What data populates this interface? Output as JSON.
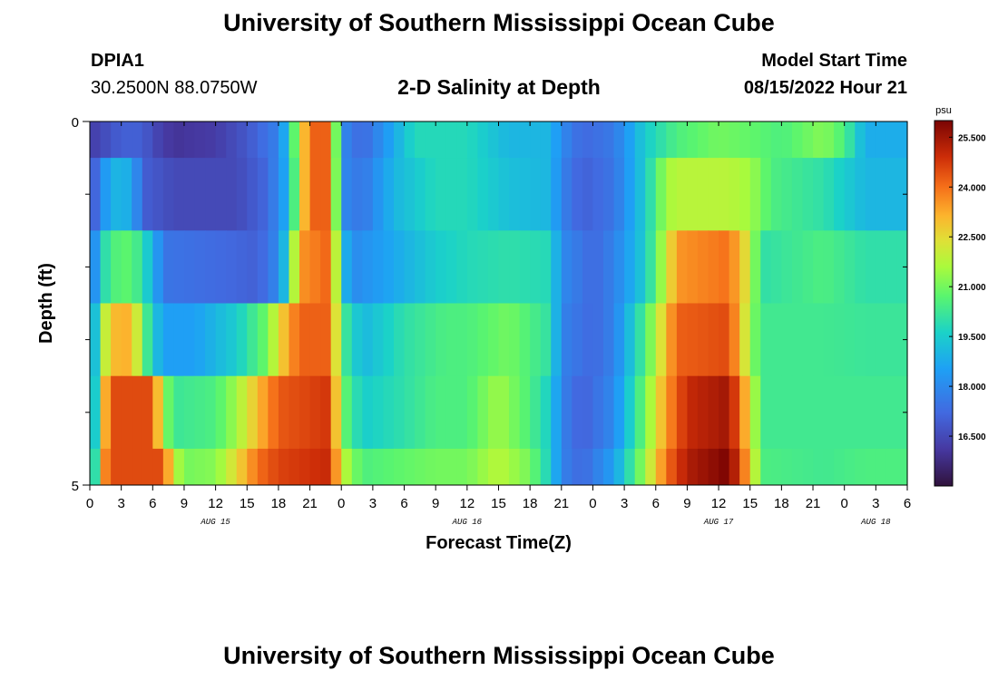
{
  "page": {
    "title_top": "University of Southern Mississippi Ocean Cube",
    "title_bottom": "University of Southern Mississippi Ocean Cube",
    "station_id": "DPIA1",
    "coordinates": "30.2500N  88.0750W",
    "chart_title": "2-D Salinity at Depth",
    "model_start_label": "Model Start Time",
    "model_start_value": "08/15/2022 Hour 21"
  },
  "chart_data": {
    "type": "heatmap",
    "title": "2-D Salinity at Depth",
    "xlabel": "Forecast Time(Z)",
    "ylabel": "Depth (ft)",
    "x_tick_labels": [
      "0",
      "3",
      "6",
      "9",
      "12",
      "15",
      "18",
      "21",
      "0",
      "3",
      "6",
      "9",
      "12",
      "15",
      "18",
      "21",
      "0",
      "3",
      "6",
      "9",
      "12",
      "15",
      "18",
      "21",
      "0",
      "3",
      "6"
    ],
    "x_range_hours": [
      0,
      78
    ],
    "day_labels": [
      {
        "label": "AUG 15",
        "hour": 12
      },
      {
        "label": "AUG 16",
        "hour": 36
      },
      {
        "label": "AUG 17",
        "hour": 60
      },
      {
        "label": "AUG 18",
        "hour": 75
      }
    ],
    "y_tick_labels": [
      "0",
      "5"
    ],
    "y_range": [
      0,
      5
    ],
    "colorbar": {
      "unit": "psu",
      "range": [
        15.0,
        26.0
      ],
      "tick_labels": [
        "25.500",
        "24.000",
        "22.500",
        "21.000",
        "19.500",
        "18.000",
        "16.500"
      ],
      "tick_values": [
        25.5,
        24.0,
        22.5,
        21.0,
        19.5,
        18.0,
        16.5
      ]
    },
    "depth_layers": [
      0.25,
      1.25,
      2.25,
      3.25,
      4.25,
      4.75
    ],
    "series": [
      {
        "name": "layer-0",
        "knots": [
          [
            0,
            16.2
          ],
          [
            3,
            17.0
          ],
          [
            5,
            17.0
          ],
          [
            6,
            16.5
          ],
          [
            8,
            16.0
          ],
          [
            12,
            16.2
          ],
          [
            15,
            16.8
          ],
          [
            18,
            17.8
          ],
          [
            19,
            19.5
          ],
          [
            20,
            22.0
          ],
          [
            21,
            24.2
          ],
          [
            23,
            24.2
          ],
          [
            23.5,
            21.0
          ],
          [
            24,
            18.0
          ],
          [
            26,
            17.2
          ],
          [
            28,
            18.2
          ],
          [
            31,
            19.8
          ],
          [
            36,
            19.8
          ],
          [
            40,
            19.0
          ],
          [
            44,
            19.0
          ],
          [
            45,
            18.0
          ],
          [
            47,
            17.2
          ],
          [
            50,
            17.6
          ],
          [
            53,
            19.5
          ],
          [
            56,
            20.5
          ],
          [
            60,
            21.0
          ],
          [
            63,
            20.8
          ],
          [
            66,
            20.5
          ],
          [
            70,
            21.2
          ],
          [
            72,
            20.5
          ],
          [
            74,
            18.8
          ],
          [
            78,
            18.8
          ]
        ]
      },
      {
        "name": "layer-1",
        "knots": [
          [
            0,
            16.5
          ],
          [
            1,
            17.8
          ],
          [
            2,
            19.0
          ],
          [
            4,
            18.8
          ],
          [
            5,
            17.0
          ],
          [
            8,
            16.5
          ],
          [
            14,
            16.5
          ],
          [
            17,
            17.2
          ],
          [
            19,
            19.0
          ],
          [
            20,
            22.0
          ],
          [
            21,
            24.2
          ],
          [
            23,
            24.2
          ],
          [
            24,
            18.0
          ],
          [
            26,
            17.5
          ],
          [
            29,
            19.0
          ],
          [
            33,
            19.8
          ],
          [
            36,
            19.8
          ],
          [
            40,
            19.2
          ],
          [
            44,
            19.0
          ],
          [
            45,
            17.8
          ],
          [
            47,
            17.0
          ],
          [
            50,
            17.5
          ],
          [
            53,
            19.5
          ],
          [
            55,
            21.5
          ],
          [
            56,
            21.8
          ],
          [
            61,
            21.8
          ],
          [
            63,
            21.5
          ],
          [
            65,
            20.5
          ],
          [
            70,
            20.0
          ],
          [
            72,
            19.5
          ],
          [
            74,
            19.0
          ],
          [
            78,
            19.0
          ]
        ]
      },
      {
        "name": "layer-2",
        "knots": [
          [
            0,
            17.0
          ],
          [
            1,
            19.5
          ],
          [
            2,
            20.5
          ],
          [
            4,
            20.8
          ],
          [
            6,
            19.0
          ],
          [
            7,
            17.5
          ],
          [
            13,
            17.2
          ],
          [
            16,
            17.0
          ],
          [
            18,
            18.0
          ],
          [
            19,
            20.0
          ],
          [
            20,
            23.5
          ],
          [
            23,
            24.2
          ],
          [
            24,
            19.5
          ],
          [
            25,
            18.0
          ],
          [
            28,
            18.5
          ],
          [
            33,
            19.5
          ],
          [
            36,
            19.8
          ],
          [
            40,
            20.0
          ],
          [
            44,
            19.8
          ],
          [
            45,
            18.0
          ],
          [
            48,
            17.2
          ],
          [
            50,
            17.8
          ],
          [
            53,
            19.5
          ],
          [
            55,
            22.0
          ],
          [
            56,
            23.5
          ],
          [
            61,
            24.0
          ],
          [
            63,
            22.0
          ],
          [
            64,
            20.0
          ],
          [
            70,
            20.5
          ],
          [
            74,
            20.0
          ],
          [
            78,
            20.0
          ]
        ]
      },
      {
        "name": "layer-3",
        "knots": [
          [
            0,
            17.5
          ],
          [
            1,
            21.0
          ],
          [
            2,
            23.0
          ],
          [
            4,
            23.2
          ],
          [
            5,
            21.0
          ],
          [
            6,
            19.5
          ],
          [
            7,
            18.5
          ],
          [
            10,
            18.5
          ],
          [
            14,
            19.5
          ],
          [
            17,
            21.0
          ],
          [
            18,
            22.5
          ],
          [
            20,
            24.2
          ],
          [
            23,
            24.2
          ],
          [
            24,
            20.5
          ],
          [
            26,
            19.0
          ],
          [
            30,
            20.0
          ],
          [
            34,
            20.5
          ],
          [
            36,
            20.5
          ],
          [
            40,
            21.0
          ],
          [
            44,
            20.0
          ],
          [
            45,
            17.8
          ],
          [
            48,
            17.2
          ],
          [
            50,
            17.8
          ],
          [
            53,
            20.5
          ],
          [
            56,
            24.2
          ],
          [
            61,
            24.5
          ],
          [
            63,
            21.5
          ],
          [
            64,
            20.3
          ],
          [
            70,
            20.3
          ],
          [
            74,
            20.2
          ],
          [
            78,
            20.2
          ]
        ]
      },
      {
        "name": "layer-4",
        "knots": [
          [
            0,
            17.0
          ],
          [
            1,
            22.0
          ],
          [
            2,
            24.5
          ],
          [
            6,
            24.5
          ],
          [
            7,
            21.5
          ],
          [
            8,
            20.2
          ],
          [
            12,
            20.5
          ],
          [
            14,
            21.5
          ],
          [
            16,
            23.0
          ],
          [
            18,
            24.3
          ],
          [
            23,
            24.8
          ],
          [
            24,
            21.0
          ],
          [
            26,
            19.5
          ],
          [
            30,
            20.0
          ],
          [
            33,
            20.5
          ],
          [
            36,
            20.5
          ],
          [
            39,
            21.5
          ],
          [
            42,
            20.5
          ],
          [
            44,
            19.5
          ],
          [
            45,
            17.8
          ],
          [
            47,
            17.0
          ],
          [
            50,
            18.0
          ],
          [
            53,
            21.0
          ],
          [
            55,
            23.5
          ],
          [
            57,
            25.0
          ],
          [
            61,
            25.5
          ],
          [
            63,
            22.5
          ],
          [
            64,
            20.3
          ],
          [
            70,
            20.3
          ],
          [
            74,
            20.3
          ],
          [
            78,
            20.3
          ]
        ]
      },
      {
        "name": "layer-5",
        "knots": [
          [
            0,
            17.0
          ],
          [
            1,
            23.0
          ],
          [
            2,
            24.5
          ],
          [
            7,
            24.5
          ],
          [
            8,
            22.0
          ],
          [
            9,
            21.0
          ],
          [
            12,
            21.2
          ],
          [
            14,
            22.5
          ],
          [
            16,
            24.0
          ],
          [
            18,
            24.6
          ],
          [
            23,
            25.0
          ],
          [
            24,
            22.0
          ],
          [
            26,
            20.5
          ],
          [
            30,
            20.8
          ],
          [
            33,
            21.0
          ],
          [
            36,
            21.0
          ],
          [
            39,
            21.8
          ],
          [
            42,
            21.0
          ],
          [
            44,
            19.5
          ],
          [
            45,
            17.8
          ],
          [
            47,
            17.2
          ],
          [
            50,
            18.5
          ],
          [
            53,
            21.5
          ],
          [
            55,
            24.0
          ],
          [
            57,
            25.3
          ],
          [
            61,
            26.0
          ],
          [
            63,
            23.0
          ],
          [
            64,
            20.5
          ],
          [
            70,
            20.3
          ],
          [
            74,
            20.5
          ],
          [
            78,
            20.5
          ]
        ]
      }
    ]
  }
}
